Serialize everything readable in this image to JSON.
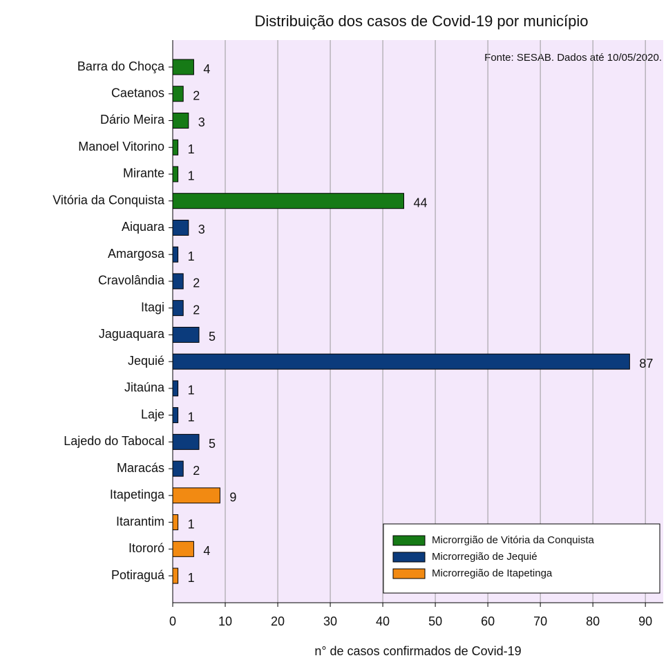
{
  "chart_data": {
    "type": "bar",
    "orientation": "horizontal",
    "title": "Distribuição dos casos de Covid-19 por município",
    "annotation": "Fonte: SESAB. Dados até 10/05/2020.",
    "xlabel": "n° de casos confirmados de Covid-19",
    "categories": [
      "Barra do Choça",
      "Caetanos",
      "Dário Meira",
      "Manoel Vitorino",
      "Mirante",
      "Vitória da Conquista",
      "Aiquara",
      "Amargosa",
      "Cravolândia",
      "Itagi",
      "Jaguaquara",
      "Jequié",
      "Jitaúna",
      "Laje",
      "Lajedo do Tabocal",
      "Maracás",
      "Itapetinga",
      "Itarantim",
      "Itororó",
      "Potiraguá"
    ],
    "series": [
      {
        "name": "Microrrgião de Vitória da Conquista",
        "color": "#167a16",
        "values": [
          4,
          2,
          3,
          1,
          1,
          44,
          null,
          null,
          null,
          null,
          null,
          null,
          null,
          null,
          null,
          null,
          null,
          null,
          null,
          null
        ]
      },
      {
        "name": "Microrregião de Jequié",
        "color": "#0b3b7c",
        "values": [
          null,
          null,
          null,
          null,
          null,
          null,
          3,
          1,
          2,
          2,
          5,
          87,
          1,
          1,
          5,
          2,
          null,
          null,
          null,
          null
        ]
      },
      {
        "name": "Microrregião de Itapetinga",
        "color": "#f28a12",
        "values": [
          null,
          null,
          null,
          null,
          null,
          null,
          null,
          null,
          null,
          null,
          null,
          null,
          null,
          null,
          null,
          null,
          9,
          1,
          4,
          1
        ]
      }
    ],
    "xlim": [
      0,
      93.4
    ],
    "xticks": [
      0,
      10,
      20,
      30,
      40,
      50,
      60,
      70,
      80,
      90
    ],
    "grid": true,
    "legend": "lower right"
  }
}
